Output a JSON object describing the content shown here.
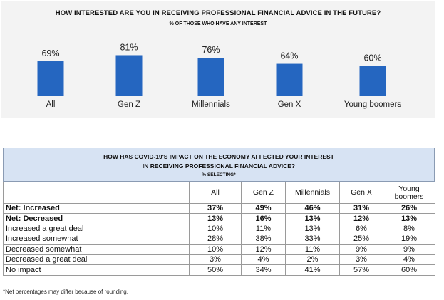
{
  "chart_data": {
    "type": "bar",
    "title": "HOW INTERESTED ARE YOU IN RECEIVING PROFESSIONAL FINANCIAL ADVICE IN THE FUTURE?",
    "subtitle": "% OF THOSE WHO HAVE ANY INTEREST",
    "categories": [
      "All",
      "Gen Z",
      "Millennials",
      "Gen X",
      "Young boomers"
    ],
    "values": [
      69,
      81,
      76,
      64,
      60
    ],
    "data_labels": [
      "69%",
      "81%",
      "76%",
      "64%",
      "60%"
    ],
    "bar_color": "#2566c0",
    "ylim": [
      0,
      100
    ],
    "grid": false,
    "legend": "none"
  },
  "table": {
    "title_line1": "HOW HAS COVID-19'S IMPACT ON THE ECONOMY AFFECTED YOUR INTEREST",
    "title_line2": "IN RECEIVING PROFESSIONAL FINANCIAL ADVICE?",
    "note": "% SELECTING*",
    "header_color": "#d7e3f3",
    "columns": [
      "All",
      "Gen Z",
      "Millennials",
      "Gen X",
      "Young boomers"
    ],
    "rows": [
      {
        "label": "Net: Increased",
        "bold": true,
        "values": [
          "37%",
          "49%",
          "46%",
          "31%",
          "26%"
        ]
      },
      {
        "label": "Net: Decreased",
        "bold": true,
        "values": [
          "13%",
          "16%",
          "13%",
          "12%",
          "13%"
        ]
      },
      {
        "label": "Increased a great deal",
        "bold": false,
        "values": [
          "10%",
          "11%",
          "13%",
          "6%",
          "8%"
        ]
      },
      {
        "label": "Increased somewhat",
        "bold": false,
        "values": [
          "28%",
          "38%",
          "33%",
          "25%",
          "19%"
        ]
      },
      {
        "label": "Decreased somewhat",
        "bold": false,
        "values": [
          "10%",
          "12%",
          "11%",
          "9%",
          "9%"
        ]
      },
      {
        "label": "Decreased a great deal",
        "bold": false,
        "values": [
          "3%",
          "4%",
          "2%",
          "3%",
          "4%"
        ]
      },
      {
        "label": "No impact",
        "bold": false,
        "values": [
          "50%",
          "34%",
          "41%",
          "57%",
          "60%"
        ]
      }
    ]
  },
  "footnote": "*Net percentages may differ because of rounding."
}
